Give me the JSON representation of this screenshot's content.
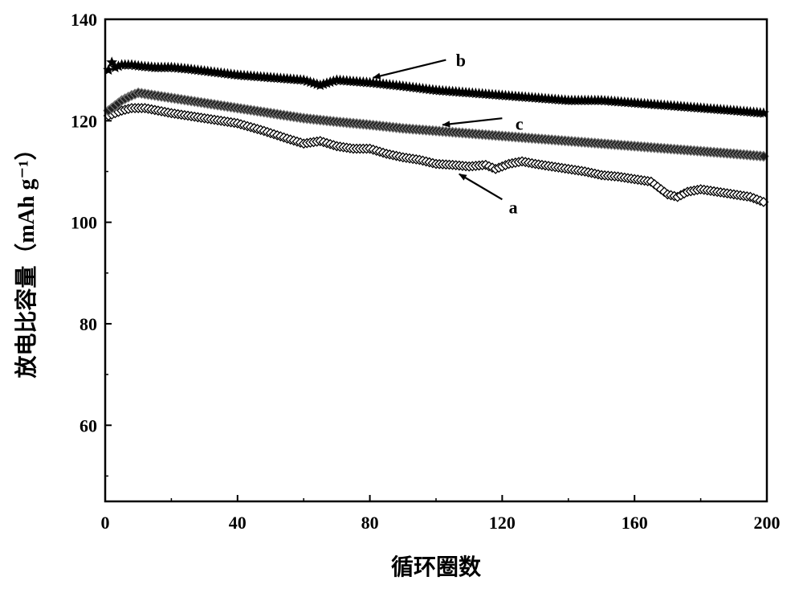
{
  "chart_data": {
    "type": "scatter",
    "xlabel": "循环圈数",
    "ylabel": "放电比容量（mAh  g⁻¹）",
    "xlim": [
      0,
      200
    ],
    "ylim": [
      45,
      140
    ],
    "x_ticks": [
      0,
      40,
      80,
      120,
      160,
      200
    ],
    "y_ticks": [
      60,
      80,
      100,
      120,
      140
    ],
    "grid": false,
    "legend": "none",
    "series": [
      {
        "name": "a",
        "marker": "open-diamond",
        "color": "#000000",
        "points": [
          [
            1,
            121
          ],
          [
            3,
            121.5
          ],
          [
            5,
            122
          ],
          [
            8,
            122.5
          ],
          [
            12,
            122.5
          ],
          [
            20,
            121.5
          ],
          [
            30,
            120.5
          ],
          [
            40,
            119.5
          ],
          [
            48,
            118
          ],
          [
            55,
            116.5
          ],
          [
            60,
            115.5
          ],
          [
            65,
            116
          ],
          [
            70,
            115
          ],
          [
            75,
            114.5
          ],
          [
            80,
            114.5
          ],
          [
            85,
            113.5
          ],
          [
            90,
            112.8
          ],
          [
            95,
            112.3
          ],
          [
            100,
            111.5
          ],
          [
            105,
            111.3
          ],
          [
            110,
            111
          ],
          [
            115,
            111.3
          ],
          [
            118,
            110.5
          ],
          [
            122,
            111.5
          ],
          [
            126,
            112
          ],
          [
            130,
            111.5
          ],
          [
            135,
            111
          ],
          [
            140,
            110.5
          ],
          [
            145,
            110
          ],
          [
            150,
            109.3
          ],
          [
            155,
            109
          ],
          [
            160,
            108.5
          ],
          [
            165,
            108
          ],
          [
            168,
            106.5
          ],
          [
            170,
            105.5
          ],
          [
            173,
            105
          ],
          [
            176,
            106
          ],
          [
            180,
            106.5
          ],
          [
            185,
            106
          ],
          [
            190,
            105.5
          ],
          [
            195,
            105
          ],
          [
            199,
            104
          ]
        ]
      },
      {
        "name": "b",
        "marker": "star",
        "color": "#000000",
        "points": [
          [
            1,
            130
          ],
          [
            2,
            131.5
          ],
          [
            3,
            130.5
          ],
          [
            5,
            131
          ],
          [
            8,
            131
          ],
          [
            10,
            130.8
          ],
          [
            15,
            130.5
          ],
          [
            20,
            130.5
          ],
          [
            25,
            130.2
          ],
          [
            30,
            129.8
          ],
          [
            40,
            129
          ],
          [
            50,
            128.5
          ],
          [
            60,
            128
          ],
          [
            65,
            127
          ],
          [
            70,
            128
          ],
          [
            80,
            127.5
          ],
          [
            90,
            126.8
          ],
          [
            100,
            126
          ],
          [
            110,
            125.5
          ],
          [
            120,
            125
          ],
          [
            130,
            124.5
          ],
          [
            140,
            124
          ],
          [
            150,
            124
          ],
          [
            160,
            123.5
          ],
          [
            170,
            123
          ],
          [
            180,
            122.5
          ],
          [
            190,
            122
          ],
          [
            199,
            121.5
          ]
        ]
      },
      {
        "name": "c",
        "marker": "filled-diamond",
        "color": "#000000",
        "points": [
          [
            1,
            122
          ],
          [
            3,
            123
          ],
          [
            5,
            124
          ],
          [
            8,
            125
          ],
          [
            10,
            125.5
          ],
          [
            15,
            125
          ],
          [
            20,
            124.5
          ],
          [
            30,
            123.5
          ],
          [
            40,
            122.5
          ],
          [
            50,
            121.5
          ],
          [
            60,
            120.5
          ],
          [
            70,
            119.8
          ],
          [
            80,
            119.2
          ],
          [
            90,
            118.5
          ],
          [
            100,
            118
          ],
          [
            110,
            117.5
          ],
          [
            120,
            117
          ],
          [
            130,
            116.5
          ],
          [
            140,
            116
          ],
          [
            150,
            115.5
          ],
          [
            160,
            115
          ],
          [
            170,
            114.5
          ],
          [
            180,
            114
          ],
          [
            190,
            113.5
          ],
          [
            199,
            113
          ]
        ]
      }
    ],
    "annotations": [
      {
        "text": "a",
        "target_series": "a",
        "label_at": [
          122,
          103
        ],
        "arrow_from": [
          120,
          104.5
        ],
        "arrow_to": [
          107,
          109.5
        ]
      },
      {
        "text": "b",
        "target_series": "b",
        "label_at": [
          106,
          132
        ],
        "arrow_from": [
          103,
          132
        ],
        "arrow_to": [
          81,
          128.5
        ]
      },
      {
        "text": "c",
        "target_series": "c",
        "label_at": [
          124,
          119.5
        ],
        "arrow_from": [
          120,
          120.5
        ],
        "arrow_to": [
          102,
          119.2
        ]
      }
    ]
  }
}
